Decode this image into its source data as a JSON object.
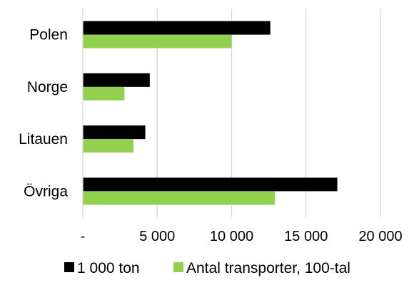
{
  "chart_data": {
    "type": "bar",
    "orientation": "horizontal",
    "categories": [
      "Polen",
      "Norge",
      "Litauen",
      "Övriga"
    ],
    "series": [
      {
        "name": "1 000 ton",
        "color": "#000000",
        "values": [
          12600,
          4500,
          4200,
          17100
        ]
      },
      {
        "name": "Antal transporter, 100-tal",
        "color": "#92d050",
        "values": [
          10000,
          2800,
          3400,
          12900
        ]
      }
    ],
    "xlim": [
      0,
      20000
    ],
    "xticks": [
      {
        "value": 0,
        "label": "-"
      },
      {
        "value": 5000,
        "label": "5 000"
      },
      {
        "value": 10000,
        "label": "10 000"
      },
      {
        "value": 15000,
        "label": "15 000"
      },
      {
        "value": 20000,
        "label": "20 000"
      }
    ],
    "grid": "vertical",
    "legend_position": "bottom",
    "title": "",
    "xlabel": "",
    "ylabel": ""
  }
}
